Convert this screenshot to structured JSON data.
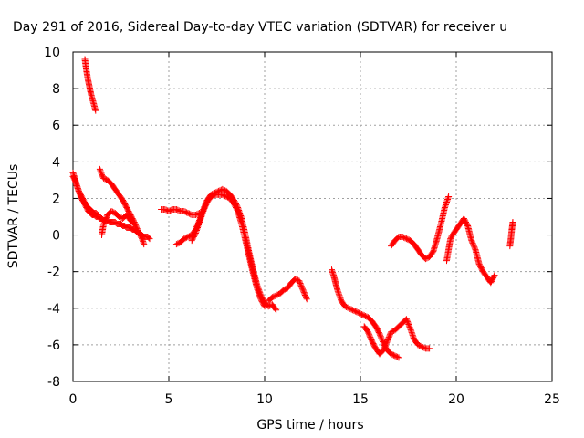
{
  "chart_data": {
    "type": "scatter",
    "title": "Day 291 of 2016, Sidereal Day-to-day VTEC variation (SDTVAR) for receiver u",
    "xlabel": "GPS time / hours",
    "ylabel": "SDTVAR / TECUs",
    "xlim": [
      0,
      25
    ],
    "ylim": [
      -8,
      10
    ],
    "xticks": [
      0,
      5,
      10,
      15,
      20,
      25
    ],
    "yticks": [
      -8,
      -6,
      -4,
      -2,
      0,
      2,
      4,
      6,
      8,
      10
    ],
    "xtick_labels": [
      "0",
      "5",
      "10",
      "15",
      "20",
      "25"
    ],
    "ytick_labels": [
      "-8",
      "-6",
      "-4",
      "-2",
      "0",
      "2",
      "4",
      "6",
      "8",
      "10"
    ],
    "grid": true,
    "legend": "none",
    "marker": "plus",
    "color": "#ff0000",
    "series": [
      {
        "x": [
          0.0,
          0.1,
          0.2,
          0.3,
          0.4,
          0.5,
          0.6,
          0.7,
          0.8,
          0.9,
          1.0,
          1.1,
          1.2,
          1.3,
          1.4,
          1.5,
          1.6,
          1.7,
          1.8,
          1.9,
          2.0,
          2.1,
          2.2,
          2.3,
          2.4,
          2.5,
          2.6,
          2.7,
          2.8,
          2.9,
          3.0,
          3.1,
          3.2,
          3.3,
          3.4,
          3.5,
          3.6,
          3.7,
          3.8,
          3.9,
          4.0
        ],
        "y": [
          3.4,
          3.1,
          2.7,
          2.4,
          2.1,
          1.9,
          1.7,
          1.5,
          1.3,
          1.2,
          1.1,
          1.1,
          1.0,
          1.0,
          0.9,
          0.9,
          0.8,
          0.8,
          0.8,
          0.7,
          0.7,
          0.7,
          0.7,
          0.6,
          0.6,
          0.6,
          0.5,
          0.5,
          0.4,
          0.4,
          0.4,
          0.3,
          0.3,
          0.2,
          0.1,
          0.1,
          0.0,
          -0.1,
          -0.1,
          -0.1,
          -0.2
        ]
      },
      {
        "x": [
          0.0,
          0.1,
          0.2,
          0.3,
          0.4,
          0.5,
          0.6,
          0.7,
          0.8,
          0.9,
          1.0,
          1.1,
          1.2,
          1.3
        ],
        "y": [
          3.2,
          3.0,
          2.7,
          2.4,
          2.2,
          2.0,
          1.8,
          1.6,
          1.5,
          1.4,
          1.3,
          1.2,
          1.2,
          1.1
        ]
      },
      {
        "x": [
          0.62,
          0.7,
          0.78,
          0.86,
          0.94,
          1.02,
          1.1,
          1.18
        ],
        "y": [
          9.6,
          9.0,
          8.5,
          8.1,
          7.7,
          7.4,
          7.1,
          6.8
        ]
      },
      {
        "x": [
          1.4,
          1.5,
          1.6,
          1.8,
          2.0,
          2.2,
          2.4,
          2.6,
          2.8,
          3.0,
          3.2,
          3.4,
          3.6,
          3.7
        ],
        "y": [
          3.6,
          3.3,
          3.1,
          3.0,
          2.8,
          2.5,
          2.2,
          1.9,
          1.5,
          1.1,
          0.7,
          0.2,
          -0.2,
          -0.5
        ]
      },
      {
        "x": [
          1.5,
          1.6,
          1.8,
          2.0,
          2.2,
          2.4,
          2.6,
          2.8,
          3.0,
          3.2
        ],
        "y": [
          0.0,
          0.6,
          1.1,
          1.3,
          1.2,
          1.0,
          0.9,
          1.1,
          0.8,
          0.6
        ]
      },
      {
        "x": [
          4.6,
          4.8,
          5.0,
          5.2,
          5.4,
          5.6,
          5.8,
          6.0,
          6.2,
          6.4,
          6.6
        ],
        "y": [
          1.4,
          1.4,
          1.3,
          1.4,
          1.4,
          1.3,
          1.3,
          1.2,
          1.1,
          1.1,
          1.2
        ]
      },
      {
        "x": [
          5.4,
          5.6,
          5.8,
          6.0,
          6.2,
          6.4,
          6.6,
          6.8,
          7.0,
          7.2,
          7.4,
          7.6,
          7.8,
          8.0,
          8.2,
          8.4,
          8.6,
          8.8,
          9.0,
          9.2,
          9.4,
          9.6,
          9.8,
          10.0,
          10.2,
          10.4,
          10.6
        ],
        "y": [
          -0.5,
          -0.4,
          -0.2,
          -0.1,
          0.0,
          0.3,
          0.8,
          1.4,
          1.9,
          2.2,
          2.3,
          2.4,
          2.5,
          2.4,
          2.2,
          1.9,
          1.5,
          0.9,
          0.0,
          -1.0,
          -1.9,
          -2.7,
          -3.3,
          -3.7,
          -3.9,
          -3.8,
          -4.1
        ]
      },
      {
        "x": [
          6.2,
          6.4,
          6.6,
          6.8,
          7.0,
          7.2,
          7.4,
          7.6,
          7.8,
          8.0,
          8.2,
          8.4,
          8.6,
          8.8,
          9.0,
          9.2,
          9.4,
          9.6,
          9.8,
          10.0
        ],
        "y": [
          -0.3,
          0.1,
          0.7,
          1.3,
          1.8,
          2.1,
          2.2,
          2.2,
          2.2,
          2.1,
          2.0,
          1.7,
          1.3,
          0.6,
          -0.3,
          -1.2,
          -2.1,
          -2.9,
          -3.5,
          -3.9
        ]
      },
      {
        "x": [
          10.2,
          10.4,
          10.6,
          10.8,
          11.0,
          11.2,
          11.4,
          11.6,
          11.8,
          12.0,
          12.2
        ],
        "y": [
          -3.6,
          -3.4,
          -3.3,
          -3.2,
          -3.0,
          -2.9,
          -2.6,
          -2.4,
          -2.5,
          -3.0,
          -3.5
        ]
      },
      {
        "x": [
          13.5,
          13.6,
          13.7,
          13.8,
          14.0,
          14.2,
          14.4,
          14.6,
          14.8,
          15.0,
          15.2,
          15.4,
          15.6,
          15.8,
          16.0,
          16.2,
          16.4,
          16.6,
          16.8,
          17.0
        ],
        "y": [
          -1.9,
          -2.2,
          -2.6,
          -3.0,
          -3.6,
          -3.9,
          -4.0,
          -4.1,
          -4.2,
          -4.3,
          -4.4,
          -4.5,
          -4.7,
          -5.0,
          -5.4,
          -5.9,
          -6.3,
          -6.5,
          -6.6,
          -6.7
        ]
      },
      {
        "x": [
          15.2,
          15.4,
          15.6,
          15.8,
          16.0,
          16.2,
          16.4,
          16.6,
          16.8,
          17.0,
          17.2,
          17.4,
          17.6,
          17.8,
          18.0,
          18.2,
          18.4,
          18.6
        ],
        "y": [
          -5.0,
          -5.3,
          -5.8,
          -6.2,
          -6.5,
          -6.3,
          -5.8,
          -5.3,
          -5.2,
          -5.0,
          -4.8,
          -4.6,
          -5.1,
          -5.7,
          -6.0,
          -6.1,
          -6.2,
          -6.2
        ]
      },
      {
        "x": [
          16.6,
          16.8,
          17.0,
          17.2,
          17.4,
          17.6,
          17.8,
          18.0,
          18.2,
          18.4,
          18.6,
          18.8,
          19.0,
          19.2,
          19.4,
          19.6
        ],
        "y": [
          -0.6,
          -0.3,
          -0.1,
          -0.1,
          -0.2,
          -0.3,
          -0.5,
          -0.8,
          -1.1,
          -1.3,
          -1.2,
          -0.9,
          -0.2,
          0.6,
          1.5,
          2.1
        ]
      },
      {
        "x": [
          19.5,
          19.6,
          19.7,
          19.8,
          20.0,
          20.2,
          20.4,
          20.6,
          20.8,
          21.0,
          21.2,
          21.4,
          21.6,
          21.8,
          22.0
        ],
        "y": [
          -1.4,
          -0.8,
          -0.2,
          0.0,
          0.3,
          0.6,
          0.9,
          0.5,
          -0.3,
          -0.8,
          -1.6,
          -2.0,
          -2.3,
          -2.6,
          -2.2
        ]
      },
      {
        "x": [
          22.8,
          22.85,
          22.9,
          22.95
        ],
        "y": [
          -0.6,
          -0.2,
          0.3,
          0.7
        ]
      }
    ]
  }
}
